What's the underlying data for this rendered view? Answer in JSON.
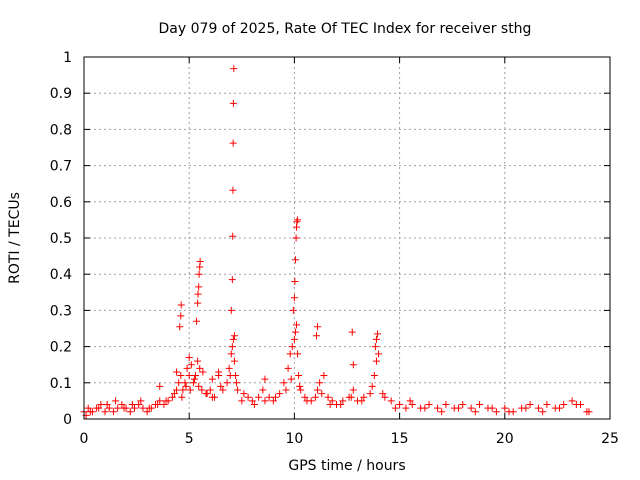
{
  "chart_data": {
    "type": "scatter",
    "title": "Day 079 of 2025, Rate Of TEC Index for receiver sthg",
    "xlabel": "GPS time / hours",
    "ylabel": "ROTI / TECUs",
    "xlim": [
      0,
      25
    ],
    "ylim": [
      0,
      1
    ],
    "xticks": [
      "0",
      "5",
      "10",
      "15",
      "20",
      "25"
    ],
    "yticks": [
      "0",
      "0.1",
      "0.2",
      "0.3",
      "0.4",
      "0.5",
      "0.6",
      "0.7",
      "0.8",
      "0.9",
      "1"
    ],
    "grid": true,
    "marker": "+",
    "color": "#ff0000",
    "series": [
      {
        "x": [
          0.0,
          0.2,
          0.4,
          0.6,
          0.8,
          1.0,
          1.2,
          1.4,
          1.6,
          1.8,
          2.0,
          2.2,
          2.4,
          2.6,
          2.8,
          3.0,
          3.2,
          3.4,
          3.6,
          3.8,
          4.0,
          4.2,
          4.4,
          4.5,
          4.6,
          4.7,
          4.8,
          4.9,
          5.0,
          5.1,
          5.2,
          5.3,
          5.4,
          5.5,
          5.6,
          5.8,
          6.0,
          6.2,
          6.4,
          6.6,
          6.8,
          6.9,
          7.0,
          7.05,
          7.1,
          7.15,
          7.2,
          7.3,
          7.5,
          7.8,
          8.0,
          8.3,
          8.5,
          8.8,
          9.0,
          9.3,
          9.5,
          9.7,
          9.8,
          9.9,
          10.0,
          10.05,
          10.1,
          10.15,
          10.2,
          10.3,
          10.5,
          10.8,
          11.0,
          11.1,
          11.2,
          11.4,
          11.6,
          11.8,
          12.0,
          12.3,
          12.6,
          12.8,
          13.0,
          13.3,
          13.6,
          13.8,
          13.9,
          14.0,
          14.3,
          14.6,
          15.0,
          15.3,
          15.6,
          16.0,
          16.4,
          16.8,
          17.2,
          17.6,
          18.0,
          18.4,
          18.8,
          19.2,
          19.6,
          20.0,
          20.4,
          20.8,
          21.2,
          21.6,
          22.0,
          22.4,
          22.8,
          23.2,
          23.6,
          24.0,
          0.1,
          0.3,
          0.7,
          1.1,
          1.5,
          1.9,
          2.3,
          2.7,
          3.1,
          3.5,
          3.9,
          4.3,
          4.65,
          4.85,
          5.05,
          5.25,
          5.45,
          5.65,
          5.85,
          6.1,
          6.5,
          6.95,
          7.25,
          7.6,
          8.1,
          8.6,
          9.1,
          9.6,
          9.85,
          10.25,
          10.6,
          11.3,
          11.7,
          12.2,
          12.7,
          13.2,
          13.7,
          14.2,
          14.8,
          15.5,
          16.2,
          17.0,
          17.8,
          18.6,
          19.4,
          20.2,
          21.0,
          21.8,
          22.6,
          23.4,
          23.9,
          4.55,
          4.6,
          4.62,
          5.35,
          5.4,
          5.42,
          5.45,
          5.47,
          5.5,
          5.52,
          7.0,
          7.05,
          7.07,
          7.08,
          7.09,
          7.1,
          7.12,
          7.15,
          9.95,
          10.0,
          10.02,
          10.05,
          10.08,
          10.1,
          10.12,
          10.15,
          11.05,
          11.1,
          12.8,
          12.75,
          13.85,
          13.9,
          13.95,
          8.6,
          6.4,
          6.1,
          4.4,
          5.0,
          3.6
        ],
        "y": [
          0.02,
          0.03,
          0.02,
          0.03,
          0.04,
          0.02,
          0.03,
          0.02,
          0.03,
          0.04,
          0.03,
          0.02,
          0.03,
          0.04,
          0.03,
          0.02,
          0.03,
          0.04,
          0.05,
          0.04,
          0.05,
          0.06,
          0.08,
          0.1,
          0.12,
          0.08,
          0.1,
          0.14,
          0.12,
          0.15,
          0.1,
          0.12,
          0.16,
          0.14,
          0.08,
          0.07,
          0.08,
          0.06,
          0.12,
          0.08,
          0.1,
          0.14,
          0.18,
          0.2,
          0.22,
          0.16,
          0.12,
          0.08,
          0.05,
          0.06,
          0.05,
          0.06,
          0.08,
          0.06,
          0.05,
          0.07,
          0.1,
          0.14,
          0.18,
          0.2,
          0.22,
          0.24,
          0.26,
          0.18,
          0.12,
          0.08,
          0.06,
          0.05,
          0.06,
          0.08,
          0.1,
          0.12,
          0.06,
          0.05,
          0.04,
          0.05,
          0.06,
          0.08,
          0.05,
          0.06,
          0.07,
          0.12,
          0.16,
          0.18,
          0.06,
          0.05,
          0.04,
          0.03,
          0.04,
          0.03,
          0.04,
          0.03,
          0.04,
          0.03,
          0.04,
          0.03,
          0.04,
          0.03,
          0.02,
          0.03,
          0.02,
          0.03,
          0.04,
          0.03,
          0.04,
          0.03,
          0.04,
          0.05,
          0.04,
          0.02,
          0.01,
          0.02,
          0.03,
          0.04,
          0.05,
          0.03,
          0.04,
          0.05,
          0.03,
          0.04,
          0.05,
          0.07,
          0.06,
          0.09,
          0.08,
          0.11,
          0.09,
          0.13,
          0.07,
          0.06,
          0.09,
          0.12,
          0.1,
          0.07,
          0.04,
          0.05,
          0.06,
          0.08,
          0.11,
          0.09,
          0.05,
          0.07,
          0.04,
          0.04,
          0.06,
          0.05,
          0.09,
          0.07,
          0.03,
          0.05,
          0.03,
          0.02,
          0.03,
          0.02,
          0.03,
          0.02,
          0.03,
          0.02,
          0.03,
          0.04,
          0.02,
          0.255,
          0.285,
          0.315,
          0.27,
          0.32,
          0.345,
          0.365,
          0.4,
          0.42,
          0.435,
          0.3,
          0.385,
          0.505,
          0.632,
          0.762,
          0.872,
          0.968,
          0.23,
          0.3,
          0.335,
          0.38,
          0.44,
          0.5,
          0.53,
          0.545,
          0.55,
          0.23,
          0.255,
          0.15,
          0.24,
          0.2,
          0.22,
          0.235,
          0.11,
          0.13,
          0.11,
          0.13,
          0.17,
          0.09
        ]
      }
    ]
  }
}
